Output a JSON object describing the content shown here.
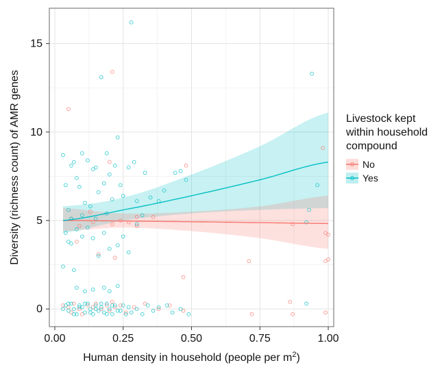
{
  "chart_data": {
    "type": "scatter",
    "title": "",
    "xlabel": "Human density in household (people per m",
    "xlabel_superscript": "2",
    "xlabel_suffix": ")",
    "ylabel": "Diversity (richness count) of AMR genes",
    "xlim": [
      -0.02,
      1.02
    ],
    "ylim": [
      -1.0,
      17.0
    ],
    "x_ticks": [
      0.0,
      0.25,
      0.5,
      0.75,
      1.0
    ],
    "x_tick_labels": [
      "0.00",
      "0.25",
      "0.50",
      "0.75",
      "1.00"
    ],
    "y_ticks": [
      0,
      5,
      10,
      15
    ],
    "y_tick_labels": [
      "0",
      "5",
      "10",
      "15"
    ],
    "grid": true,
    "legend": {
      "title_lines": [
        "Livestock kept",
        "within household",
        "compound"
      ],
      "placement": "right",
      "entries": [
        "No",
        "Yes"
      ]
    },
    "series": [
      {
        "name": "No",
        "color": "#F8766D",
        "fill": "#F8766D",
        "trend": {
          "x": [
            0.03,
            0.25,
            0.5,
            0.75,
            1.0
          ],
          "y": [
            5.0,
            4.97,
            4.93,
            4.88,
            4.83
          ],
          "lower": [
            4.4,
            4.6,
            4.4,
            4.0,
            3.4
          ],
          "upper": [
            5.7,
            5.4,
            5.5,
            5.8,
            6.4
          ]
        },
        "points": [
          [
            0.03,
            0.2
          ],
          [
            0.05,
            0.1
          ],
          [
            0.06,
            -0.2
          ],
          [
            0.07,
            0.3
          ],
          [
            0.09,
            0.0
          ],
          [
            0.1,
            -0.3
          ],
          [
            0.12,
            0.2
          ],
          [
            0.14,
            0.1
          ],
          [
            0.15,
            0.3
          ],
          [
            0.17,
            0.0
          ],
          [
            0.19,
            0.2
          ],
          [
            0.2,
            -0.1
          ],
          [
            0.21,
            0.4
          ],
          [
            0.22,
            0.1
          ],
          [
            0.24,
            0.2
          ],
          [
            0.26,
            -0.2
          ],
          [
            0.29,
            0.1
          ],
          [
            0.33,
            0.3
          ],
          [
            0.38,
            0.0
          ],
          [
            0.42,
            0.2
          ],
          [
            0.47,
            -0.1
          ],
          [
            0.72,
            -0.3
          ],
          [
            0.86,
            0.4
          ],
          [
            0.87,
            -0.3
          ],
          [
            0.99,
            -0.2
          ],
          [
            0.05,
            11.3
          ],
          [
            0.21,
            13.4
          ],
          [
            0.2,
            8.3
          ],
          [
            0.48,
            8.1
          ],
          [
            0.47,
            1.8
          ],
          [
            0.71,
            2.7
          ],
          [
            0.87,
            4.8
          ],
          [
            0.99,
            4.3
          ],
          [
            1.0,
            4.2
          ],
          [
            0.99,
            2.7
          ],
          [
            1.0,
            2.8
          ],
          [
            0.98,
            9.1
          ],
          [
            0.06,
            5.1
          ],
          [
            0.09,
            4.7
          ],
          [
            0.14,
            4.9
          ],
          [
            0.21,
            4.8
          ],
          [
            0.24,
            5.0
          ],
          [
            0.27,
            4.9
          ],
          [
            0.3,
            4.7
          ],
          [
            0.36,
            5.2
          ],
          [
            0.16,
            3.1
          ],
          [
            0.22,
            2.9
          ],
          [
            0.08,
            3.8
          ],
          [
            0.13,
            5.5
          ],
          [
            0.3,
            5.2
          ]
        ]
      },
      {
        "name": "Yes",
        "color": "#00BFC4",
        "fill": "#00BFC4",
        "trend": {
          "x": [
            0.03,
            0.25,
            0.5,
            0.75,
            1.0
          ],
          "y": [
            5.0,
            5.6,
            6.4,
            7.3,
            8.3
          ],
          "lower": [
            4.3,
            5.0,
            5.4,
            5.6,
            5.7
          ],
          "upper": [
            5.8,
            6.3,
            7.6,
            9.2,
            11.1
          ]
        },
        "points": [
          [
            0.03,
            8.7
          ],
          [
            0.04,
            7.0
          ],
          [
            0.05,
            5.6
          ],
          [
            0.06,
            8.1
          ],
          [
            0.07,
            8.3
          ],
          [
            0.08,
            7.4
          ],
          [
            0.09,
            6.9
          ],
          [
            0.1,
            8.8
          ],
          [
            0.11,
            6.0
          ],
          [
            0.12,
            8.4
          ],
          [
            0.13,
            5.8
          ],
          [
            0.14,
            7.9
          ],
          [
            0.15,
            8.0
          ],
          [
            0.16,
            6.6
          ],
          [
            0.17,
            13.1
          ],
          [
            0.18,
            7.1
          ],
          [
            0.19,
            8.8
          ],
          [
            0.2,
            7.6
          ],
          [
            0.21,
            6.2
          ],
          [
            0.22,
            8.1
          ],
          [
            0.23,
            9.7
          ],
          [
            0.24,
            7.0
          ],
          [
            0.25,
            6.4
          ],
          [
            0.27,
            8.0
          ],
          [
            0.28,
            16.2
          ],
          [
            0.29,
            8.3
          ],
          [
            0.3,
            6.1
          ],
          [
            0.33,
            7.7
          ],
          [
            0.35,
            6.3
          ],
          [
            0.38,
            6.1
          ],
          [
            0.4,
            6.7
          ],
          [
            0.44,
            7.7
          ],
          [
            0.46,
            7.8
          ],
          [
            0.48,
            7.3
          ],
          [
            0.92,
            4.9
          ],
          [
            0.93,
            5.6
          ],
          [
            0.94,
            13.3
          ],
          [
            0.96,
            7.0
          ],
          [
            0.04,
            4.3
          ],
          [
            0.05,
            3.8
          ],
          [
            0.06,
            3.7
          ],
          [
            0.07,
            2.2
          ],
          [
            0.08,
            4.5
          ],
          [
            0.1,
            4.1
          ],
          [
            0.12,
            4.6
          ],
          [
            0.14,
            4.0
          ],
          [
            0.16,
            3.0
          ],
          [
            0.18,
            4.3
          ],
          [
            0.2,
            3.4
          ],
          [
            0.23,
            3.6
          ],
          [
            0.25,
            4.1
          ],
          [
            0.27,
            3.2
          ],
          [
            0.3,
            4.8
          ],
          [
            0.32,
            5.3
          ],
          [
            0.03,
            2.4
          ],
          [
            0.08,
            1.2
          ],
          [
            0.11,
            1.0
          ],
          [
            0.14,
            1.1
          ],
          [
            0.18,
            1.2
          ],
          [
            0.2,
            1.0
          ],
          [
            0.23,
            1.3
          ],
          [
            0.04,
            0.2
          ],
          [
            0.05,
            -0.1
          ],
          [
            0.06,
            0.3
          ],
          [
            0.07,
            0.0
          ],
          [
            0.08,
            -0.3
          ],
          [
            0.09,
            0.2
          ],
          [
            0.1,
            0.1
          ],
          [
            0.11,
            -0.2
          ],
          [
            0.12,
            0.3
          ],
          [
            0.13,
            0.0
          ],
          [
            0.14,
            -0.3
          ],
          [
            0.15,
            0.2
          ],
          [
            0.16,
            -0.1
          ],
          [
            0.17,
            0.1
          ],
          [
            0.18,
            -0.2
          ],
          [
            0.19,
            0.3
          ],
          [
            0.2,
            0.0
          ],
          [
            0.21,
            -0.3
          ],
          [
            0.22,
            0.2
          ],
          [
            0.24,
            -0.1
          ],
          [
            0.25,
            0.2
          ],
          [
            0.26,
            -0.3
          ],
          [
            0.27,
            0.1
          ],
          [
            0.28,
            -0.2
          ],
          [
            0.3,
            0.0
          ],
          [
            0.32,
            -0.3
          ],
          [
            0.34,
            0.2
          ],
          [
            0.36,
            -0.1
          ],
          [
            0.38,
            0.1
          ],
          [
            0.41,
            0.2
          ],
          [
            0.43,
            -0.2
          ],
          [
            0.46,
            0.0
          ],
          [
            0.49,
            -0.3
          ],
          [
            0.92,
            0.3
          ],
          [
            0.03,
            0.0
          ],
          [
            0.05,
            0.3
          ],
          [
            0.07,
            -0.3
          ],
          [
            0.09,
            0.1
          ],
          [
            0.11,
            0.3
          ],
          [
            0.13,
            -0.2
          ],
          [
            0.15,
            0.0
          ],
          [
            0.17,
            0.3
          ],
          [
            0.19,
            -0.3
          ],
          [
            0.21,
            0.2
          ],
          [
            0.23,
            -0.1
          ],
          [
            0.06,
            5.1
          ],
          [
            0.1,
            5.3
          ],
          [
            0.15,
            5.1
          ],
          [
            0.19,
            5.4
          ]
        ]
      }
    ]
  }
}
